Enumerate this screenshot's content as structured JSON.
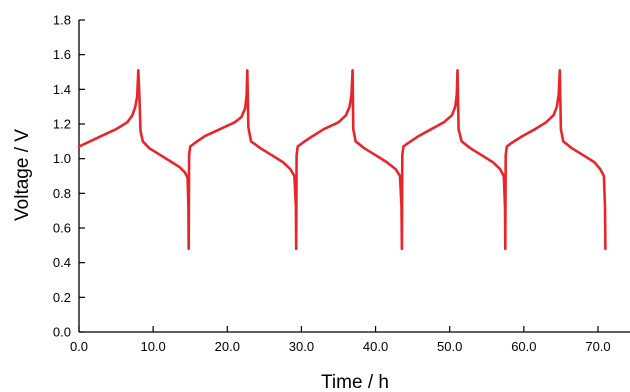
{
  "chart_data": {
    "type": "line",
    "title": "",
    "xlabel": "Time / h",
    "ylabel": "Voltage / V",
    "xlim": [
      0,
      75
    ],
    "ylim": [
      0,
      1.8
    ],
    "grid": false,
    "x_ticks": [
      0,
      10,
      20,
      30,
      40,
      50,
      60,
      70
    ],
    "x_tick_labels": [
      "0.0",
      "10.0",
      "20.0",
      "30.0",
      "40.0",
      "50.0",
      "60.0",
      "70.0"
    ],
    "y_ticks": [
      0,
      0.2,
      0.4,
      0.6,
      0.8,
      1.0,
      1.2,
      1.4,
      1.6,
      1.8
    ],
    "y_tick_labels": [
      "0.0",
      "0.2",
      "0.4",
      "0.6",
      "0.8",
      "1.0",
      "1.2",
      "1.4",
      "1.6",
      "1.8"
    ],
    "series": [
      {
        "color": "#e8262a",
        "x": [
          0,
          1,
          3,
          5,
          6.5,
          7.2,
          7.6,
          7.85,
          8.0,
          8.15,
          8.3,
          8.6,
          9.5,
          11,
          12.5,
          13.6,
          14.3,
          14.65,
          14.75,
          14.8,
          14.85,
          15.0,
          15.6,
          17,
          19,
          21,
          21.9,
          22.4,
          22.6,
          22.7,
          22.85,
          23.2,
          24.5,
          26,
          27.5,
          28.5,
          29.05,
          29.25,
          29.3,
          29.35,
          29.5,
          30.1,
          31.5,
          33,
          35,
          36,
          36.5,
          36.75,
          36.9,
          37.0,
          37.3,
          38.5,
          40,
          41.5,
          42.7,
          43.3,
          43.5,
          43.55,
          43.6,
          43.75,
          44.4,
          45.8,
          47.5,
          49.2,
          50.3,
          50.75,
          50.95,
          51.05,
          51.2,
          51.6,
          52.8,
          54.3,
          55.8,
          56.8,
          57.3,
          57.45,
          57.5,
          57.55,
          57.7,
          58.3,
          59.8,
          61.5,
          63,
          64,
          64.45,
          64.7,
          64.85,
          65.0,
          65.3,
          66.5,
          68,
          69.5,
          70.3,
          70.8,
          70.95,
          71.0
        ],
        "y": [
          1.07,
          1.09,
          1.13,
          1.17,
          1.21,
          1.25,
          1.3,
          1.36,
          1.51,
          1.36,
          1.16,
          1.1,
          1.06,
          1.02,
          0.98,
          0.95,
          0.92,
          0.89,
          0.72,
          0.48,
          1.02,
          1.07,
          1.09,
          1.13,
          1.17,
          1.21,
          1.24,
          1.29,
          1.36,
          1.51,
          1.18,
          1.1,
          1.06,
          1.02,
          0.98,
          0.94,
          0.9,
          0.72,
          0.48,
          1.02,
          1.07,
          1.09,
          1.13,
          1.17,
          1.21,
          1.25,
          1.3,
          1.37,
          1.51,
          1.17,
          1.1,
          1.06,
          1.02,
          0.98,
          0.94,
          0.9,
          0.72,
          0.48,
          1.02,
          1.07,
          1.09,
          1.13,
          1.17,
          1.21,
          1.25,
          1.3,
          1.37,
          1.51,
          1.17,
          1.1,
          1.06,
          1.02,
          0.98,
          0.94,
          0.9,
          0.72,
          0.48,
          1.02,
          1.07,
          1.09,
          1.13,
          1.17,
          1.21,
          1.25,
          1.3,
          1.37,
          1.51,
          1.17,
          1.1,
          1.06,
          1.02,
          0.98,
          0.94,
          0.9,
          0.72,
          0.48
        ]
      }
    ]
  }
}
